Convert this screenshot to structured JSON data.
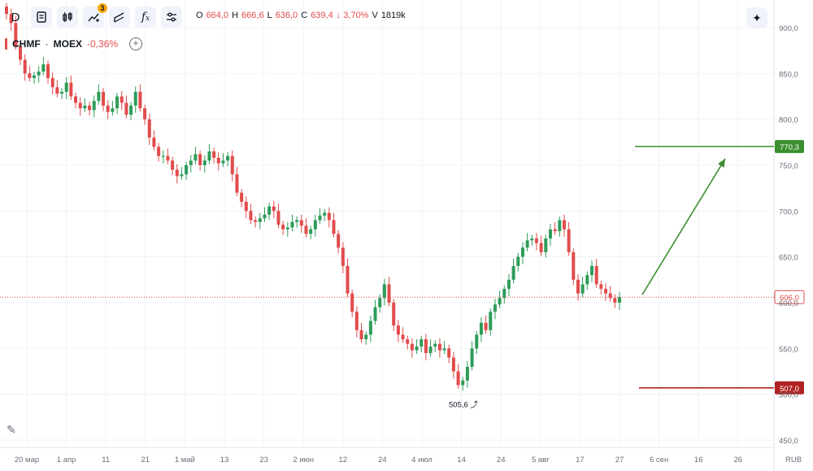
{
  "toolbar": {
    "interval": "D",
    "indicator_badge": "3",
    "icons": [
      "interval-button",
      "bar-style-icon",
      "candles-icon",
      "indicators-icon",
      "drawing-icon",
      "formula-icon",
      "settings-sliders-icon"
    ]
  },
  "ohlc": {
    "o_label": "O",
    "o": "664,0",
    "h_label": "H",
    "h": "666,6",
    "l_label": "L",
    "l": "636,0",
    "c_label": "C",
    "c": "639,4",
    "change": "↓ 3,70%",
    "v_label": "V",
    "volume": "1819k"
  },
  "legend": {
    "symbol": "CHMF",
    "dot": "·",
    "exchange": "MOEX",
    "change": "-0,36%"
  },
  "colors": {
    "up": "#2e9c5a",
    "down": "#e24b4b",
    "target": "#3a8f2e",
    "stop": "#b22222",
    "current": "#e24b4b"
  },
  "chart_data": {
    "type": "candlestick",
    "currency": "RUB",
    "ylim": [
      445,
      925
    ],
    "y_ticks": [
      "450,0",
      "500,0",
      "550,0",
      "600,0",
      "650,0",
      "700,0",
      "750,0",
      "800,0",
      "850,0",
      "900,0"
    ],
    "x_labels": [
      "20 мар",
      "1 апр",
      "11",
      "21",
      "1 май",
      "13",
      "23",
      "2 июн",
      "12",
      "24",
      "4 июл",
      "14",
      "24",
      "5 авг",
      "17",
      "27",
      "6 сен",
      "16",
      "26"
    ],
    "grid": true,
    "current_price": "606,0",
    "target_level": "770,3",
    "stop_level": "507,0",
    "low_annotation": "505,6",
    "closes": [
      915,
      905,
      880,
      865,
      850,
      845,
      848,
      852,
      860,
      845,
      835,
      828,
      830,
      840,
      825,
      818,
      812,
      815,
      810,
      820,
      830,
      815,
      808,
      812,
      825,
      818,
      805,
      815,
      830,
      812,
      800,
      780,
      770,
      760,
      760,
      755,
      745,
      738,
      740,
      750,
      755,
      762,
      750,
      755,
      765,
      758,
      752,
      755,
      760,
      740,
      720,
      710,
      700,
      690,
      688,
      692,
      696,
      705,
      700,
      685,
      680,
      682,
      688,
      690,
      684,
      675,
      680,
      690,
      695,
      698,
      690,
      675,
      660,
      640,
      610,
      590,
      570,
      560,
      565,
      580,
      595,
      605,
      620,
      600,
      575,
      565,
      560,
      555,
      548,
      552,
      560,
      545,
      552,
      555,
      548,
      550,
      540,
      525,
      510,
      515,
      530,
      550,
      565,
      578,
      570,
      590,
      598,
      605,
      615,
      625,
      640,
      650,
      660,
      668,
      670,
      665,
      655,
      670,
      680,
      678,
      690,
      680,
      655,
      625,
      610,
      620,
      630,
      640,
      620,
      615,
      610,
      605,
      600,
      606
    ]
  }
}
